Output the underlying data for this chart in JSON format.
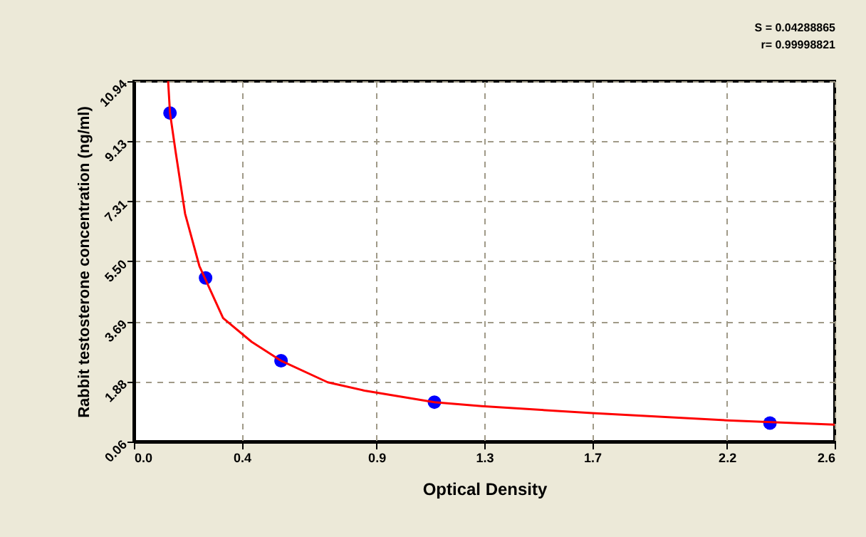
{
  "chart_data": {
    "type": "scatter",
    "xlabel": "Optical Density",
    "ylabel": "Rabbit testosterone concentration (ng/ml)",
    "annotations": [
      "S = 0.04288865",
      "r= 0.99998821"
    ],
    "series": [
      {
        "color": "#0000ff",
        "marker": "circle",
        "x": [
          0.134,
          0.266,
          0.546,
          1.115,
          2.36
        ],
        "values": [
          9.98,
          5.0,
          2.5,
          1.25,
          0.62
        ]
      },
      {
        "type": "line",
        "color": "#ff0000",
        "marker": "none",
        "line_style": "solid",
        "x": [
          0.127,
          0.134,
          0.155,
          0.19,
          0.243,
          0.331,
          0.437,
          0.546,
          0.719,
          0.86,
          1.115,
          1.29,
          1.7,
          2.2,
          2.6
        ],
        "values": [
          10.94,
          9.98,
          8.8,
          6.94,
          5.36,
          3.79,
          3.07,
          2.5,
          1.85,
          1.59,
          1.25,
          1.13,
          0.92,
          0.7,
          0.57
        ]
      }
    ],
    "xlim": [
      0,
      2.6
    ],
    "xticks": [
      {
        "value": 0,
        "label": "0.0"
      },
      0.4,
      0.9,
      1.3,
      1.7,
      2.2,
      2.6
    ],
    "ylim": [
      0.06,
      10.94
    ],
    "yticks": [
      0.06,
      1.88,
      3.69,
      {
        "value": 5.5,
        "label": "5.50"
      },
      7.31,
      9.13,
      10.94
    ],
    "grid": true
  }
}
